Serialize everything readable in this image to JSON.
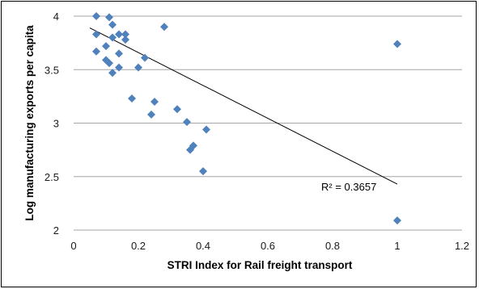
{
  "chart_data": {
    "type": "scatter",
    "xlabel": "STRI Index for Rail freight transport",
    "ylabel": "Log manufacturing exports per capita",
    "xlim": [
      0,
      1.2
    ],
    "ylim": [
      2,
      4
    ],
    "x_ticks": [
      "0",
      "0.2",
      "0.4",
      "0.6",
      "0.8",
      "1",
      "1.2"
    ],
    "y_ticks": [
      "2",
      "2.5",
      "3",
      "3.5",
      "4"
    ],
    "grid": "horizontal",
    "marker_color": "#4f81bd",
    "trendline_color": "#000000",
    "series": [
      {
        "points": [
          [
            0.07,
            4.0
          ],
          [
            0.11,
            3.99
          ],
          [
            0.12,
            3.92
          ],
          [
            0.28,
            3.9
          ],
          [
            0.07,
            3.83
          ],
          [
            0.14,
            3.83
          ],
          [
            0.16,
            3.83
          ],
          [
            0.12,
            3.8
          ],
          [
            0.16,
            3.78
          ],
          [
            0.1,
            3.72
          ],
          [
            0.07,
            3.67
          ],
          [
            0.14,
            3.65
          ],
          [
            0.22,
            3.61
          ],
          [
            0.1,
            3.59
          ],
          [
            0.11,
            3.56
          ],
          [
            0.14,
            3.52
          ],
          [
            0.2,
            3.52
          ],
          [
            0.12,
            3.47
          ],
          [
            0.18,
            3.23
          ],
          [
            0.25,
            3.2
          ],
          [
            0.32,
            3.13
          ],
          [
            0.24,
            3.08
          ],
          [
            0.35,
            3.01
          ],
          [
            0.41,
            2.94
          ],
          [
            0.37,
            2.79
          ],
          [
            0.36,
            2.75
          ],
          [
            0.4,
            2.55
          ],
          [
            1.0,
            3.74
          ],
          [
            1.0,
            2.09
          ]
        ]
      }
    ],
    "trendline": {
      "type": "linear",
      "x": [
        0.05,
        1.0
      ],
      "y": [
        3.89,
        2.43
      ],
      "label": "R² = 0.3657"
    }
  }
}
